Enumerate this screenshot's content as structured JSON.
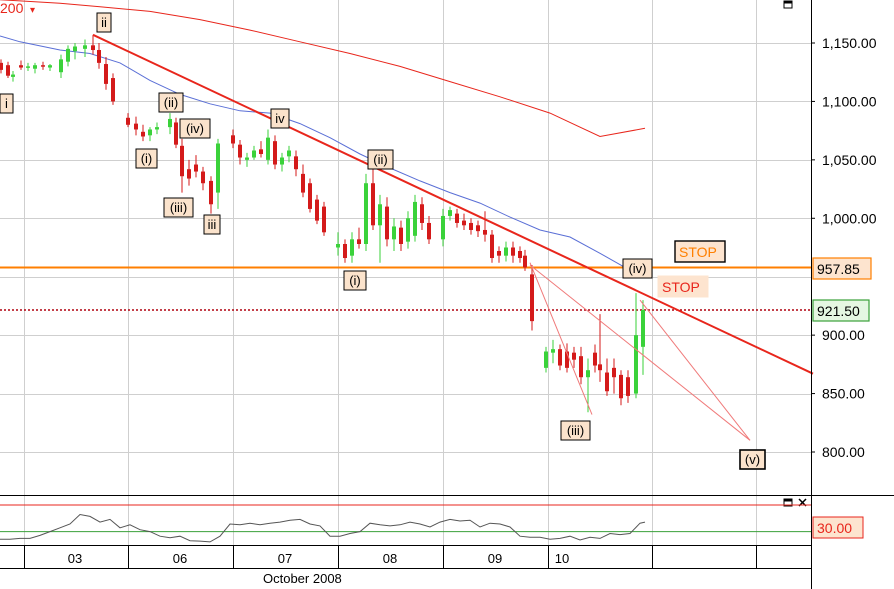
{
  "chart_data": [
    {
      "type": "candlestick",
      "xlabel": "October 2008",
      "date_ticks": [
        "03",
        "06",
        "07",
        "08",
        "09",
        "10"
      ],
      "y_ticks": [
        "1,150.00",
        "1,100.00",
        "1,050.00",
        "1,000.00",
        "900.00",
        "850.00",
        "800.00"
      ],
      "yticks_values": [
        1150,
        1100,
        1050,
        1000,
        900,
        850,
        800
      ],
      "ylim": [
        760,
        1192
      ],
      "top_left_label": "200",
      "price_levels": [
        {
          "label": "957.85",
          "value": 957.85,
          "color": "#ff7f00",
          "style": "solid"
        },
        {
          "label": "921.50",
          "value": 921.5,
          "color": "#b0000e",
          "style": "dotted"
        }
      ],
      "stop_labels": [
        "STOP",
        "STOP"
      ],
      "wave_labels": [
        "i",
        "ii",
        "(i)",
        "(ii)",
        "(iv)",
        "(iii)",
        "iii",
        "iv",
        "(i)",
        "(ii)",
        "(iv)",
        "(iii)",
        "(v)"
      ],
      "ma200": [
        [
          0,
          1187
        ],
        [
          20,
          1186
        ],
        [
          60,
          1184
        ],
        [
          100,
          1181
        ],
        [
          150,
          1177
        ],
        [
          200,
          1170
        ],
        [
          250,
          1161
        ],
        [
          300,
          1151
        ],
        [
          350,
          1141
        ],
        [
          400,
          1130
        ],
        [
          450,
          1117
        ],
        [
          500,
          1104
        ],
        [
          550,
          1090
        ],
        [
          600,
          1070
        ],
        [
          645,
          1077
        ]
      ],
      "ma50": [
        [
          0,
          1156
        ],
        [
          20,
          1151
        ],
        [
          60,
          1144
        ],
        [
          90,
          1141
        ],
        [
          120,
          1133
        ],
        [
          150,
          1118
        ],
        [
          180,
          1106
        ],
        [
          210,
          1098
        ],
        [
          240,
          1092
        ],
        [
          270,
          1090
        ],
        [
          300,
          1081
        ],
        [
          330,
          1069
        ],
        [
          360,
          1055
        ],
        [
          390,
          1043
        ],
        [
          420,
          1032
        ],
        [
          450,
          1022
        ],
        [
          480,
          1013
        ],
        [
          510,
          1001
        ],
        [
          540,
          990
        ],
        [
          570,
          984
        ],
        [
          600,
          970
        ],
        [
          625,
          958
        ]
      ],
      "trendline": [
        [
          93,
          1157
        ],
        [
          813,
          867
        ]
      ],
      "projection": [
        [
          530,
          960
        ],
        [
          750,
          810
        ]
      ],
      "bars": [
        {
          "x": 1,
          "o": 1133,
          "h": 1136,
          "l": 1124,
          "c": 1127,
          "up": false
        },
        {
          "x": 8,
          "o": 1131,
          "h": 1134,
          "l": 1120,
          "c": 1122,
          "up": false
        },
        {
          "x": 13,
          "o": 1123,
          "h": 1126,
          "l": 1117,
          "c": 1121,
          "up": true
        },
        {
          "x": 21,
          "o": 1129,
          "h": 1135,
          "l": 1127,
          "c": 1131,
          "up": false
        },
        {
          "x": 28,
          "o": 1130,
          "h": 1133,
          "l": 1126,
          "c": 1129,
          "up": true
        },
        {
          "x": 35,
          "o": 1128,
          "h": 1133,
          "l": 1124,
          "c": 1131,
          "up": true
        },
        {
          "x": 43,
          "o": 1131,
          "h": 1134,
          "l": 1127,
          "c": 1130,
          "up": false
        },
        {
          "x": 50,
          "o": 1129,
          "h": 1132,
          "l": 1126,
          "c": 1131,
          "up": true
        },
        {
          "x": 61,
          "o": 1125,
          "h": 1140,
          "l": 1120,
          "c": 1136,
          "up": true
        },
        {
          "x": 68,
          "o": 1134,
          "h": 1148,
          "l": 1130,
          "c": 1145,
          "up": true
        },
        {
          "x": 75,
          "o": 1143,
          "h": 1150,
          "l": 1136,
          "c": 1147,
          "up": true
        },
        {
          "x": 85,
          "o": 1145,
          "h": 1153,
          "l": 1138,
          "c": 1148,
          "up": true
        },
        {
          "x": 93,
          "o": 1148,
          "h": 1157,
          "l": 1140,
          "c": 1144,
          "up": false
        },
        {
          "x": 99,
          "o": 1144,
          "h": 1150,
          "l": 1128,
          "c": 1133,
          "up": false
        },
        {
          "x": 106,
          "o": 1132,
          "h": 1138,
          "l": 1110,
          "c": 1115,
          "up": false
        },
        {
          "x": 113,
          "o": 1120,
          "h": 1124,
          "l": 1097,
          "c": 1100,
          "up": false
        },
        {
          "x": 128,
          "o": 1086,
          "h": 1090,
          "l": 1078,
          "c": 1080,
          "up": false
        },
        {
          "x": 136,
          "o": 1081,
          "h": 1087,
          "l": 1071,
          "c": 1076,
          "up": false
        },
        {
          "x": 143,
          "o": 1074,
          "h": 1080,
          "l": 1066,
          "c": 1070,
          "up": false
        },
        {
          "x": 150,
          "o": 1071,
          "h": 1078,
          "l": 1066,
          "c": 1076,
          "up": true
        },
        {
          "x": 157,
          "o": 1076,
          "h": 1082,
          "l": 1072,
          "c": 1078,
          "up": true
        },
        {
          "x": 170,
          "o": 1078,
          "h": 1090,
          "l": 1072,
          "c": 1085,
          "up": true
        },
        {
          "x": 176,
          "o": 1082,
          "h": 1086,
          "l": 1060,
          "c": 1063,
          "up": false
        },
        {
          "x": 182,
          "o": 1062,
          "h": 1068,
          "l": 1022,
          "c": 1036,
          "up": false
        },
        {
          "x": 189,
          "o": 1042,
          "h": 1050,
          "l": 1028,
          "c": 1034,
          "up": false
        },
        {
          "x": 196,
          "o": 1046,
          "h": 1054,
          "l": 1035,
          "c": 1040,
          "up": false
        },
        {
          "x": 203,
          "o": 1040,
          "h": 1044,
          "l": 1024,
          "c": 1030,
          "up": false
        },
        {
          "x": 211,
          "o": 1032,
          "h": 1036,
          "l": 1004,
          "c": 1012,
          "up": false
        },
        {
          "x": 218,
          "o": 1022,
          "h": 1068,
          "l": 1008,
          "c": 1064,
          "up": true
        },
        {
          "x": 233,
          "o": 1071,
          "h": 1076,
          "l": 1060,
          "c": 1064,
          "up": false
        },
        {
          "x": 240,
          "o": 1063,
          "h": 1067,
          "l": 1046,
          "c": 1052,
          "up": false
        },
        {
          "x": 247,
          "o": 1050,
          "h": 1056,
          "l": 1044,
          "c": 1052,
          "up": true
        },
        {
          "x": 254,
          "o": 1052,
          "h": 1062,
          "l": 1050,
          "c": 1058,
          "up": true
        },
        {
          "x": 261,
          "o": 1059,
          "h": 1066,
          "l": 1052,
          "c": 1055,
          "up": false
        },
        {
          "x": 268,
          "o": 1050,
          "h": 1076,
          "l": 1046,
          "c": 1069,
          "up": true
        },
        {
          "x": 275,
          "o": 1066,
          "h": 1071,
          "l": 1042,
          "c": 1046,
          "up": false
        },
        {
          "x": 282,
          "o": 1046,
          "h": 1056,
          "l": 1040,
          "c": 1052,
          "up": true
        },
        {
          "x": 289,
          "o": 1053,
          "h": 1062,
          "l": 1048,
          "c": 1058,
          "up": true
        },
        {
          "x": 296,
          "o": 1053,
          "h": 1058,
          "l": 1036,
          "c": 1042,
          "up": false
        },
        {
          "x": 303,
          "o": 1038,
          "h": 1046,
          "l": 1018,
          "c": 1022,
          "up": false
        },
        {
          "x": 310,
          "o": 1030,
          "h": 1034,
          "l": 1005,
          "c": 1008,
          "up": false
        },
        {
          "x": 317,
          "o": 1016,
          "h": 1020,
          "l": 995,
          "c": 998,
          "up": false
        },
        {
          "x": 324,
          "o": 1010,
          "h": 1014,
          "l": 985,
          "c": 988,
          "up": false
        },
        {
          "x": 338,
          "o": 975,
          "h": 988,
          "l": 968,
          "c": 978,
          "up": true
        },
        {
          "x": 345,
          "o": 978,
          "h": 982,
          "l": 962,
          "c": 966,
          "up": false
        },
        {
          "x": 352,
          "o": 968,
          "h": 988,
          "l": 962,
          "c": 982,
          "up": true
        },
        {
          "x": 359,
          "o": 982,
          "h": 992,
          "l": 974,
          "c": 978,
          "up": false
        },
        {
          "x": 366,
          "o": 978,
          "h": 1038,
          "l": 972,
          "c": 1030,
          "up": true
        },
        {
          "x": 373,
          "o": 1030,
          "h": 1046,
          "l": 990,
          "c": 994,
          "up": false
        },
        {
          "x": 380,
          "o": 994,
          "h": 1020,
          "l": 962,
          "c": 1012,
          "up": true
        },
        {
          "x": 387,
          "o": 1010,
          "h": 1018,
          "l": 976,
          "c": 982,
          "up": false
        },
        {
          "x": 394,
          "o": 982,
          "h": 1000,
          "l": 972,
          "c": 993,
          "up": true
        },
        {
          "x": 401,
          "o": 992,
          "h": 998,
          "l": 972,
          "c": 978,
          "up": false
        },
        {
          "x": 408,
          "o": 980,
          "h": 1006,
          "l": 974,
          "c": 1000,
          "up": true
        },
        {
          "x": 415,
          "o": 985,
          "h": 1020,
          "l": 980,
          "c": 1014,
          "up": true
        },
        {
          "x": 422,
          "o": 1012,
          "h": 1018,
          "l": 990,
          "c": 996,
          "up": false
        },
        {
          "x": 429,
          "o": 996,
          "h": 1002,
          "l": 978,
          "c": 982,
          "up": false
        },
        {
          "x": 443,
          "o": 982,
          "h": 1008,
          "l": 976,
          "c": 1002,
          "up": true
        },
        {
          "x": 450,
          "o": 1002,
          "h": 1010,
          "l": 998,
          "c": 1007,
          "up": true
        },
        {
          "x": 457,
          "o": 1004,
          "h": 1008,
          "l": 992,
          "c": 996,
          "up": false
        },
        {
          "x": 464,
          "o": 998,
          "h": 1004,
          "l": 990,
          "c": 994,
          "up": false
        },
        {
          "x": 471,
          "o": 996,
          "h": 1000,
          "l": 986,
          "c": 990,
          "up": false
        },
        {
          "x": 478,
          "o": 994,
          "h": 998,
          "l": 984,
          "c": 989,
          "up": false
        },
        {
          "x": 485,
          "o": 990,
          "h": 1006,
          "l": 980,
          "c": 986,
          "up": false
        },
        {
          "x": 492,
          "o": 986,
          "h": 990,
          "l": 962,
          "c": 966,
          "up": false
        },
        {
          "x": 499,
          "o": 972,
          "h": 976,
          "l": 962,
          "c": 968,
          "up": false
        },
        {
          "x": 506,
          "o": 968,
          "h": 980,
          "l": 963,
          "c": 975,
          "up": true
        },
        {
          "x": 513,
          "o": 975,
          "h": 980,
          "l": 962,
          "c": 968,
          "up": false
        },
        {
          "x": 520,
          "o": 972,
          "h": 976,
          "l": 962,
          "c": 966,
          "up": false
        },
        {
          "x": 525,
          "o": 968,
          "h": 973,
          "l": 955,
          "c": 958,
          "up": false
        },
        {
          "x": 532,
          "o": 952,
          "h": 960,
          "l": 904,
          "c": 912,
          "up": false
        },
        {
          "x": 546,
          "o": 872,
          "h": 890,
          "l": 868,
          "c": 886,
          "up": true
        },
        {
          "x": 553,
          "o": 885,
          "h": 896,
          "l": 876,
          "c": 888,
          "up": true
        },
        {
          "x": 560,
          "o": 888,
          "h": 892,
          "l": 870,
          "c": 874,
          "up": false
        },
        {
          "x": 567,
          "o": 886,
          "h": 893,
          "l": 868,
          "c": 872,
          "up": false
        },
        {
          "x": 574,
          "o": 885,
          "h": 890,
          "l": 872,
          "c": 879,
          "up": false
        },
        {
          "x": 581,
          "o": 882,
          "h": 890,
          "l": 858,
          "c": 864,
          "up": false
        },
        {
          "x": 588,
          "o": 864,
          "h": 880,
          "l": 834,
          "c": 870,
          "up": true
        },
        {
          "x": 595,
          "o": 885,
          "h": 892,
          "l": 868,
          "c": 874,
          "up": false
        },
        {
          "x": 600,
          "o": 875,
          "h": 918,
          "l": 860,
          "c": 870,
          "up": false
        },
        {
          "x": 607,
          "o": 868,
          "h": 880,
          "l": 848,
          "c": 852,
          "up": false
        },
        {
          "x": 614,
          "o": 872,
          "h": 880,
          "l": 850,
          "c": 864,
          "up": false
        },
        {
          "x": 621,
          "o": 866,
          "h": 870,
          "l": 840,
          "c": 846,
          "up": false
        },
        {
          "x": 628,
          "o": 864,
          "h": 870,
          "l": 842,
          "c": 848,
          "up": false
        },
        {
          "x": 636,
          "o": 850,
          "h": 936,
          "l": 846,
          "c": 900,
          "up": true
        },
        {
          "x": 643,
          "o": 890,
          "h": 930,
          "l": 866,
          "c": 921.5,
          "up": true
        }
      ]
    },
    {
      "type": "line",
      "name": "oscillator",
      "level_label": "30.00",
      "level_value": 30,
      "ylim": [
        0,
        100
      ],
      "upper_line_value": 100,
      "points": [
        [
          0,
          10
        ],
        [
          10,
          10
        ],
        [
          20,
          12
        ],
        [
          30,
          12
        ],
        [
          40,
          20
        ],
        [
          50,
          30
        ],
        [
          60,
          40
        ],
        [
          70,
          50
        ],
        [
          80,
          75
        ],
        [
          90,
          70
        ],
        [
          100,
          55
        ],
        [
          110,
          62
        ],
        [
          120,
          40
        ],
        [
          130,
          48
        ],
        [
          140,
          35
        ],
        [
          150,
          30
        ],
        [
          160,
          18
        ],
        [
          170,
          14
        ],
        [
          180,
          18
        ],
        [
          190,
          6
        ],
        [
          200,
          5
        ],
        [
          210,
          3
        ],
        [
          220,
          18
        ],
        [
          230,
          50
        ],
        [
          240,
          48
        ],
        [
          250,
          52
        ],
        [
          260,
          48
        ],
        [
          270,
          52
        ],
        [
          280,
          55
        ],
        [
          290,
          60
        ],
        [
          300,
          62
        ],
        [
          310,
          50
        ],
        [
          320,
          45
        ],
        [
          330,
          18
        ],
        [
          340,
          18
        ],
        [
          350,
          25
        ],
        [
          360,
          30
        ],
        [
          370,
          52
        ],
        [
          380,
          48
        ],
        [
          390,
          45
        ],
        [
          400,
          48
        ],
        [
          410,
          55
        ],
        [
          420,
          50
        ],
        [
          430,
          42
        ],
        [
          440,
          55
        ],
        [
          450,
          62
        ],
        [
          460,
          58
        ],
        [
          470,
          60
        ],
        [
          480,
          42
        ],
        [
          490,
          52
        ],
        [
          500,
          50
        ],
        [
          510,
          42
        ],
        [
          520,
          18
        ],
        [
          530,
          15
        ],
        [
          540,
          15
        ],
        [
          550,
          10
        ],
        [
          560,
          12
        ],
        [
          570,
          18
        ],
        [
          580,
          8
        ],
        [
          590,
          15
        ],
        [
          600,
          12
        ],
        [
          610,
          25
        ],
        [
          620,
          22
        ],
        [
          630,
          25
        ],
        [
          640,
          52
        ],
        [
          645,
          55
        ]
      ]
    }
  ]
}
